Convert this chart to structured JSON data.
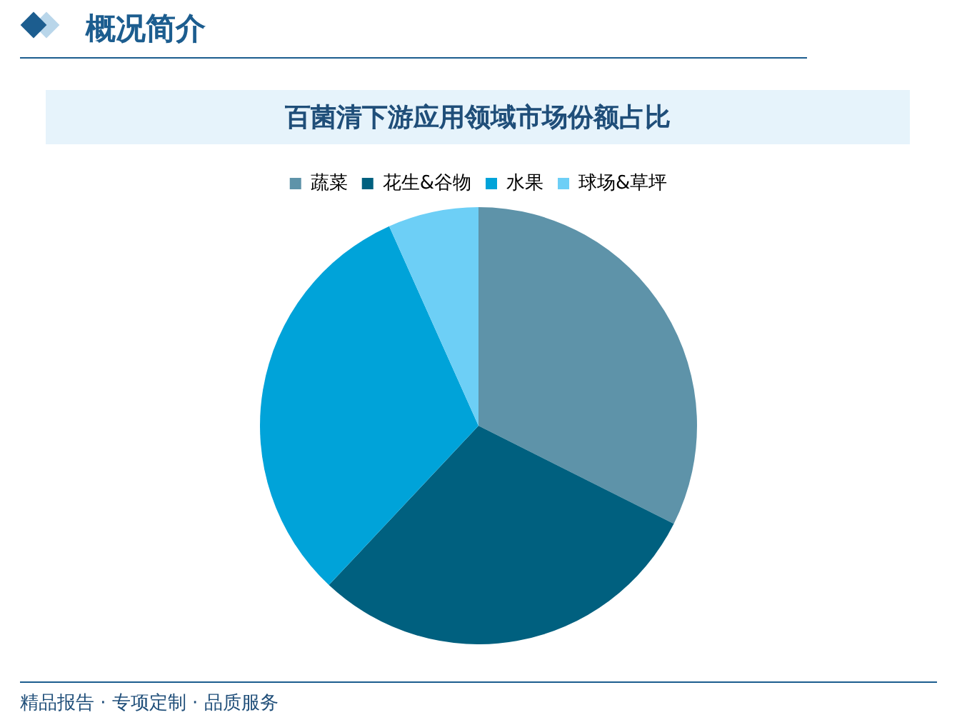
{
  "chart_data": {
    "type": "pie",
    "title": "百菌清下游应用领域市场份额占比",
    "categories": [
      "蔬菜",
      "花生&谷物",
      "水果",
      "球场&草坪"
    ],
    "values": [
      32.4,
      29.6,
      31.3,
      6.7
    ],
    "colors": [
      "#5e93a9",
      "#00607f",
      "#00a3d9",
      "#6dcff6"
    ],
    "legend": "top",
    "annotations": [
      "概况简介",
      "精品报告 · 专项定制 · 品质服务"
    ]
  }
}
